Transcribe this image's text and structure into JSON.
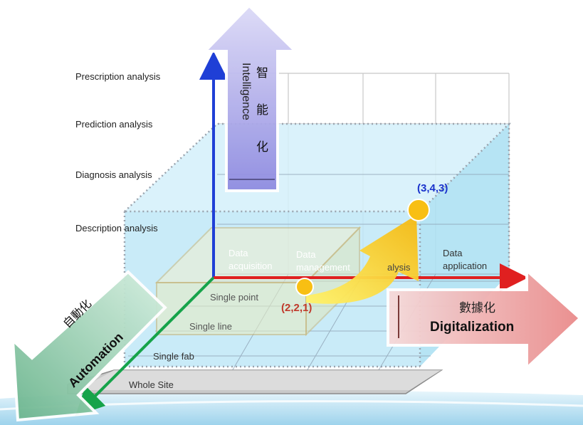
{
  "levels": {
    "prescription": "Prescription analysis",
    "prediction": "Prediction analysis",
    "diagnosis": "Diagnosis analysis",
    "description": "Description  analysis"
  },
  "digital_steps": {
    "acquisition": "Data\nacquisition",
    "management": "Data\nmanagement",
    "analysis": "alysis",
    "application": "Data\napplication"
  },
  "scope": {
    "single_point": "Single point",
    "single_line": "Single line",
    "single_fab": "Single fab",
    "whole_site": "Whole Site"
  },
  "intelligence": {
    "zh_1": "智",
    "zh_2": "能",
    "zh_3": "化",
    "en": "Intelligence"
  },
  "digitalization": {
    "zh": "數據化",
    "en": "Digitalization"
  },
  "automation": {
    "zh": "自動化",
    "en": "Automation"
  },
  "points": {
    "target": "(3,4,3)",
    "current": "(2,2,1)"
  },
  "colors": {
    "intelligence_arrow": "#a9a6e6",
    "digitalization_arrow": "#f0a3a3",
    "automation_arrow": "#8fc9a8",
    "cube_fill": "#bfe7f5",
    "point_fill": "#f8bf13",
    "target_label": "#1a33cc",
    "current_label": "#c0392b"
  }
}
